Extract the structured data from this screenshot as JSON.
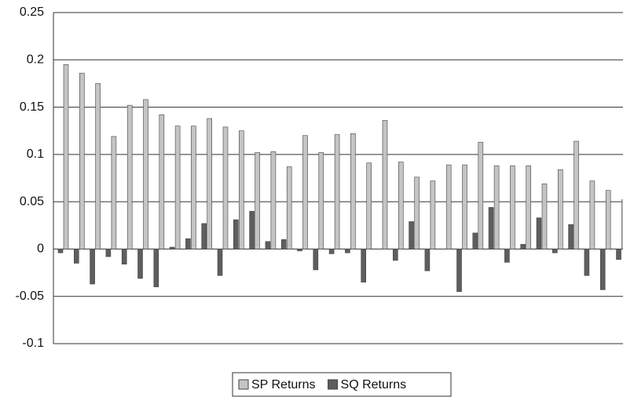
{
  "chart_data": {
    "type": "bar",
    "categories": [
      null,
      null,
      null,
      null,
      null,
      null,
      null,
      null,
      null,
      null,
      null,
      null,
      null,
      null,
      null,
      null,
      null,
      null,
      null,
      null,
      null,
      null,
      null,
      null,
      null,
      null,
      null,
      null,
      null,
      null,
      null,
      null,
      null,
      null,
      null,
      null
    ],
    "series": [
      {
        "name": "SP Returns",
        "color": "#c4c4c4",
        "values": [
          0.195,
          0.186,
          0.175,
          0.119,
          0.152,
          0.158,
          0.142,
          0.13,
          0.13,
          0.138,
          0.129,
          0.125,
          0.102,
          0.103,
          0.087,
          0.12,
          0.102,
          0.121,
          0.122,
          0.091,
          0.136,
          0.092,
          0.076,
          0.072,
          0.089,
          0.089,
          0.113,
          0.088,
          0.088,
          0.088,
          0.069,
          0.084,
          0.114,
          0.072,
          0.062,
          0.052
        ]
      },
      {
        "name": "SQ Returns",
        "color": "#5e5e5e",
        "values": [
          -0.004,
          -0.015,
          -0.037,
          -0.008,
          -0.016,
          -0.031,
          -0.04,
          0.002,
          0.011,
          0.027,
          -0.028,
          0.031,
          0.04,
          0.008,
          0.01,
          -0.002,
          -0.022,
          -0.005,
          -0.004,
          -0.035,
          0,
          -0.012,
          0.029,
          -0.023,
          0,
          -0.045,
          0.017,
          0.044,
          -0.014,
          0.005,
          0.033,
          -0.004,
          0.026,
          -0.028,
          -0.043,
          -0.011
        ]
      }
    ],
    "ylim": [
      -0.1,
      0.25
    ],
    "yticks": [
      -0.1,
      -0.05,
      0,
      0.05,
      0.1,
      0.15,
      0.2,
      0.25
    ],
    "grid": true,
    "legend": "bottom"
  }
}
